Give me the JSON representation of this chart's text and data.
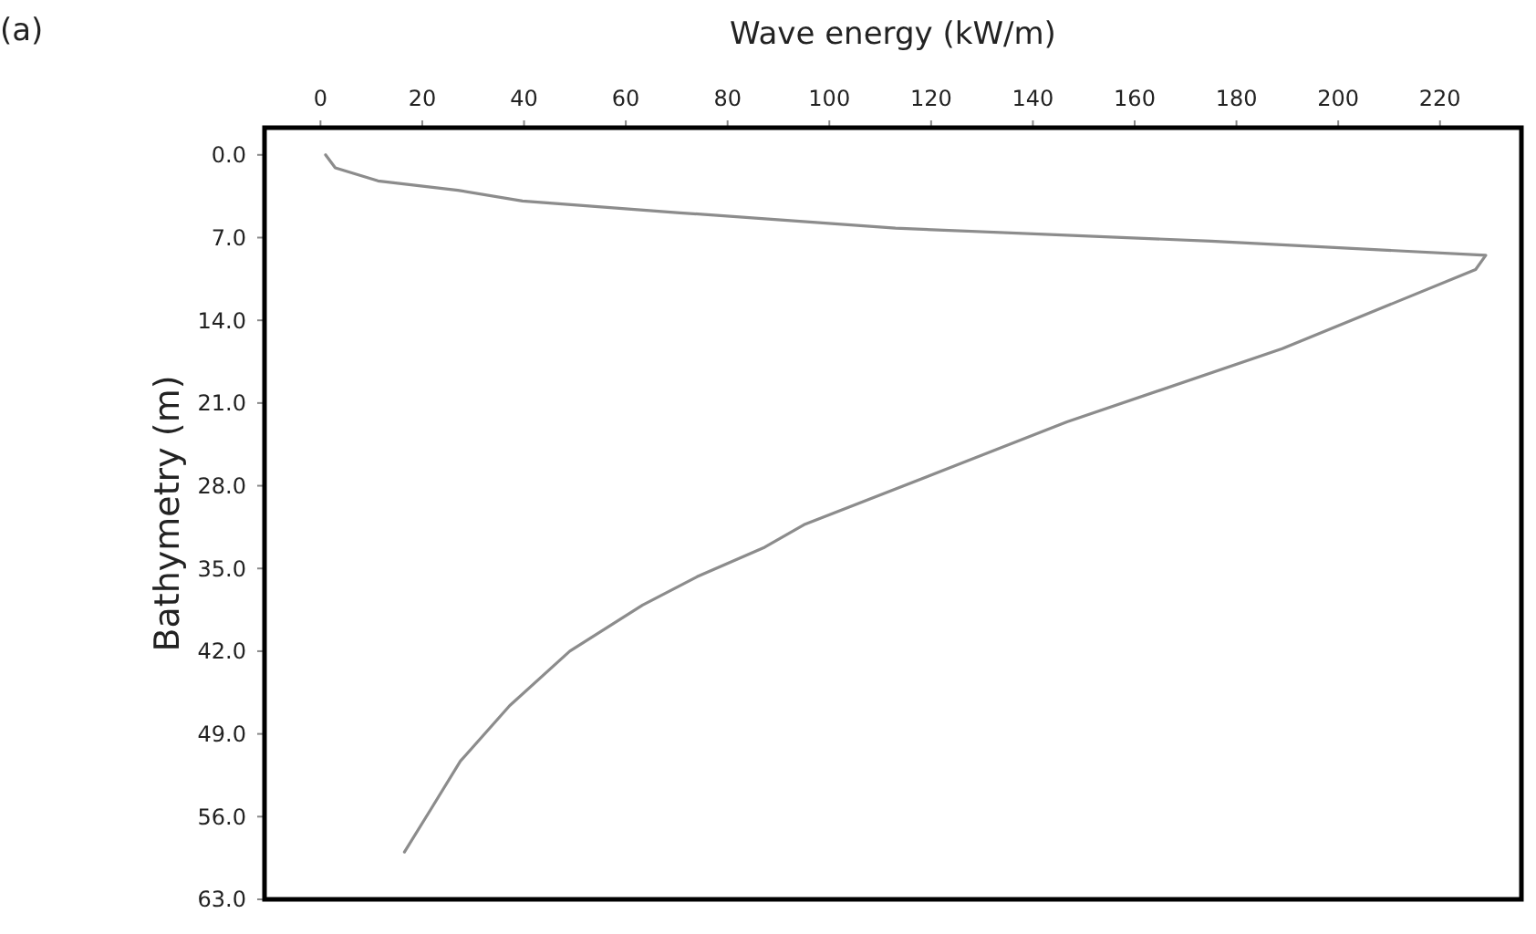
{
  "chart_data": {
    "type": "line",
    "title": "(a)",
    "xlabel": "Wave energy (kW/m)",
    "ylabel": "Bathymetry (m)",
    "series": [
      {
        "color": "#8c8c8c",
        "x": [
          1,
          2.9,
          11.3,
          27,
          39.7,
          70.6,
          113,
          175,
          229,
          227,
          189,
          146.7,
          95,
          87.3,
          74,
          63.3,
          49,
          37.2,
          27.5,
          21.8,
          16.5
        ],
        "values": [
          0,
          1.1,
          2.2,
          3,
          3.9,
          4.9,
          6.2,
          7.3,
          8.5,
          9.7,
          16.4,
          22.6,
          31.3,
          33.2,
          35.7,
          38.1,
          42,
          46.6,
          51.3,
          55.3,
          59
        ]
      }
    ],
    "xlim": [
      -11,
      236
    ],
    "xticks": [
      0,
      20,
      40,
      60,
      80,
      100,
      120,
      140,
      160,
      180,
      200,
      220
    ],
    "ylim": [
      63,
      -2.3
    ],
    "yticks": [
      {
        "value": 0,
        "label": "0.0"
      },
      {
        "value": 7,
        "label": "7.0"
      },
      {
        "value": 14,
        "label": "14.0"
      },
      {
        "value": 21,
        "label": "21.0"
      },
      {
        "value": 28,
        "label": "28.0"
      },
      {
        "value": 35,
        "label": "35.0"
      },
      {
        "value": 42,
        "label": "42.0"
      },
      {
        "value": 49,
        "label": "49.0"
      },
      {
        "value": 56,
        "label": "56.0"
      },
      {
        "value": 63,
        "label": "63.0"
      }
    ],
    "grid": false,
    "marker": "none",
    "line_style": "solid"
  }
}
